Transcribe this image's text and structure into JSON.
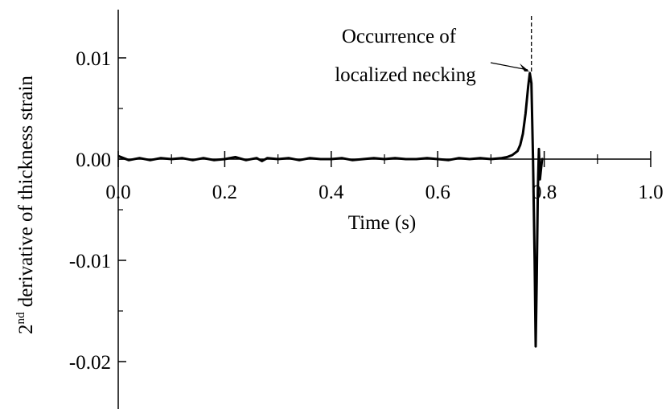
{
  "chart_data": {
    "type": "line",
    "xlabel": "Time (s)",
    "ylabel_sup": "nd",
    "ylabel_base": "2",
    "ylabel_rest": " derivative of thickness strain",
    "xlim": [
      0.0,
      1.0
    ],
    "ylim": [
      -0.025,
      0.015
    ],
    "x_ticks": [
      0.0,
      0.2,
      0.4,
      0.6,
      0.8,
      1.0
    ],
    "x_tick_labels": [
      "0.0",
      "0.2",
      "0.4",
      "0.6",
      "0.8",
      "1.0"
    ],
    "y_ticks": [
      0.01,
      0.0,
      -0.01,
      -0.02
    ],
    "y_tick_labels": [
      "0.01",
      "0.00",
      "-0.01",
      "-0.02"
    ],
    "grid": false,
    "line_color": "#000000",
    "annotation": {
      "lines": [
        "Occurrence of",
        "localized necking"
      ],
      "points_to": [
        0.775,
        0.0085
      ]
    },
    "marker_line_x": 0.776,
    "series": [
      {
        "x": [
          0.0,
          0.02,
          0.04,
          0.06,
          0.08,
          0.1,
          0.12,
          0.14,
          0.16,
          0.18,
          0.2,
          0.22,
          0.24,
          0.26,
          0.27,
          0.28,
          0.3,
          0.32,
          0.34,
          0.36,
          0.38,
          0.4,
          0.42,
          0.44,
          0.46,
          0.48,
          0.5,
          0.52,
          0.54,
          0.56,
          0.58,
          0.6,
          0.62,
          0.64,
          0.66,
          0.68,
          0.7,
          0.72,
          0.73,
          0.74,
          0.75,
          0.755,
          0.76,
          0.765,
          0.77,
          0.773,
          0.776,
          0.779,
          0.782,
          0.784,
          0.786,
          0.788,
          0.79,
          0.792,
          0.794,
          0.796,
          0.798
        ],
        "y": [
          0.0003,
          -0.0001,
          0.0001,
          -0.0001,
          0.0001,
          0.0,
          0.0001,
          -0.0001,
          0.0001,
          -0.0001,
          0.0,
          0.0002,
          -0.0001,
          0.0001,
          -0.0002,
          0.0001,
          0.0,
          0.0001,
          -0.0001,
          0.0001,
          0.0,
          0.0,
          0.0001,
          -0.0001,
          0.0,
          0.0001,
          0.0,
          0.0001,
          0.0,
          0.0,
          0.0001,
          0.0,
          -0.0001,
          0.0001,
          0.0,
          0.0001,
          0.0,
          0.0001,
          0.0002,
          0.0004,
          0.0008,
          0.0014,
          0.0025,
          0.0045,
          0.0072,
          0.0085,
          0.0075,
          0.0,
          -0.01,
          -0.0185,
          -0.012,
          -0.003,
          0.001,
          -0.002,
          -0.001,
          0.0,
          0.0
        ]
      }
    ]
  }
}
